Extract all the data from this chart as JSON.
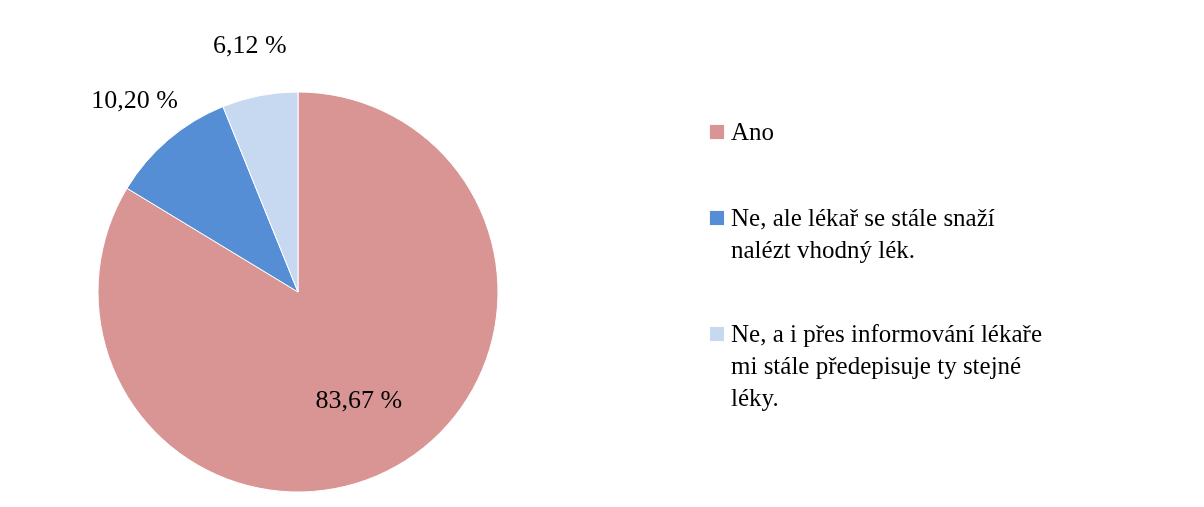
{
  "chart_data": {
    "type": "pie",
    "categories": [
      "Ano",
      "Ne, ale lékař se stále snaží nalézt vhodný lék.",
      "Ne, a i přes informování lékaře mi stále předepisuje ty stejné léky."
    ],
    "values": [
      83.67,
      10.2,
      6.12
    ],
    "colors": [
      "#d99594",
      "#558ed5",
      "#c6d9f1"
    ],
    "value_labels": [
      "83,67 %",
      "10,20 %",
      "6,12 %"
    ],
    "legend": "right"
  }
}
